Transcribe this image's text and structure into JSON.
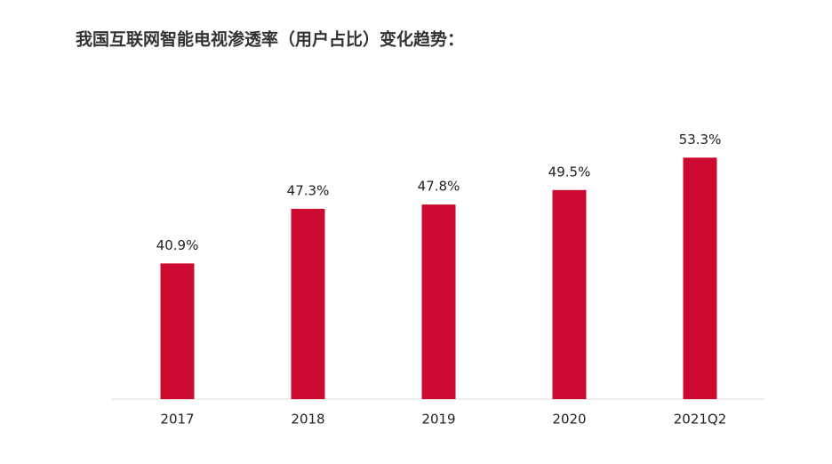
{
  "chart_data": {
    "type": "bar",
    "title": "我国互联网智能电视渗透率（用户占比）变化趋势：",
    "categories": [
      "2017",
      "2018",
      "2019",
      "2020",
      "2021Q2"
    ],
    "values": [
      40.9,
      47.3,
      47.8,
      49.5,
      53.3
    ],
    "value_labels": [
      "40.9%",
      "47.3%",
      "47.8%",
      "49.5%",
      "53.3%"
    ],
    "color": "#cc0a2f",
    "ylim": [
      25,
      55
    ]
  }
}
